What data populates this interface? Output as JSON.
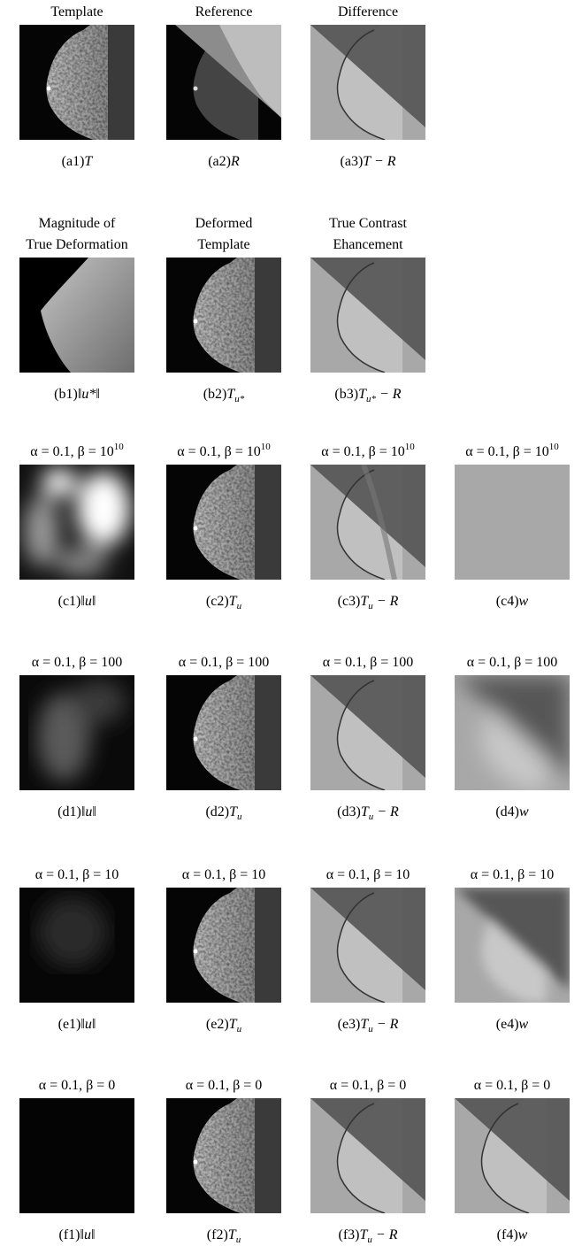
{
  "rows": [
    {
      "panels": [
        {
          "title": [
            {
              "text": "Template"
            }
          ],
          "caption": {
            "tag": "(a1)",
            "main": "T"
          }
        },
        {
          "title": [
            {
              "text": "Reference"
            }
          ],
          "caption": {
            "tag": "(a2)",
            "main": "R"
          }
        },
        {
          "title": [
            {
              "text": "Difference"
            }
          ],
          "caption": {
            "tag": "(a3)",
            "main": "T − R"
          }
        }
      ]
    },
    {
      "panels": [
        {
          "title": [
            {
              "text": "Magnitude of"
            },
            {
              "text": "True Deformation"
            }
          ],
          "caption": {
            "tag": "(b1)",
            "main": "‖u*‖"
          }
        },
        {
          "title": [
            {
              "text": "Deformed"
            },
            {
              "text": "Template"
            }
          ],
          "caption": {
            "tag": "(b2)",
            "main": "T",
            "sub": "u*"
          }
        },
        {
          "title": [
            {
              "text": "True Contrast"
            },
            {
              "text": "Ehancement"
            }
          ],
          "caption": {
            "tag": "(b3)",
            "main": "T",
            "sub": "u*",
            "rest": " − R"
          }
        }
      ]
    },
    {
      "panels": [
        {
          "title": [
            {
              "text": "α = 0.1, β = 10",
              "sup": "10"
            }
          ],
          "caption": {
            "tag": "(c1)",
            "main": "‖u‖"
          }
        },
        {
          "title": [
            {
              "text": "α = 0.1, β = 10",
              "sup": "10"
            }
          ],
          "caption": {
            "tag": "(c2)",
            "main": "T",
            "sub": "u"
          }
        },
        {
          "title": [
            {
              "text": "α = 0.1, β = 10",
              "sup": "10"
            }
          ],
          "caption": {
            "tag": "(c3)",
            "main": "T",
            "sub": "u",
            "rest": " − R"
          }
        },
        {
          "title": [
            {
              "text": "α = 0.1, β = 10",
              "sup": "10"
            }
          ],
          "caption": {
            "tag": "(c4)",
            "main": "w"
          }
        }
      ]
    },
    {
      "panels": [
        {
          "title": [
            {
              "text": "α = 0.1, β = 100"
            }
          ],
          "caption": {
            "tag": "(d1)",
            "main": "‖u‖"
          }
        },
        {
          "title": [
            {
              "text": "α = 0.1, β = 100"
            }
          ],
          "caption": {
            "tag": "(d2)",
            "main": "T",
            "sub": "u"
          }
        },
        {
          "title": [
            {
              "text": "α = 0.1, β = 100"
            }
          ],
          "caption": {
            "tag": "(d3)",
            "main": "T",
            "sub": "u",
            "rest": " − R"
          }
        },
        {
          "title": [
            {
              "text": "α = 0.1, β = 100"
            }
          ],
          "caption": {
            "tag": "(d4)",
            "main": "w"
          }
        }
      ]
    },
    {
      "panels": [
        {
          "title": [
            {
              "text": "α = 0.1, β = 10"
            }
          ],
          "caption": {
            "tag": "(e1)",
            "main": "‖u‖"
          }
        },
        {
          "title": [
            {
              "text": "α = 0.1, β = 10"
            }
          ],
          "caption": {
            "tag": "(e2)",
            "main": "T",
            "sub": "u"
          }
        },
        {
          "title": [
            {
              "text": "α = 0.1, β = 10"
            }
          ],
          "caption": {
            "tag": "(e3)",
            "main": "T",
            "sub": "u",
            "rest": " − R"
          }
        },
        {
          "title": [
            {
              "text": "α = 0.1, β = 10"
            }
          ],
          "caption": {
            "tag": "(e4)",
            "main": "w"
          }
        }
      ]
    },
    {
      "panels": [
        {
          "title": [
            {
              "text": "α = 0.1, β = 0"
            }
          ],
          "caption": {
            "tag": "(f1)",
            "main": "‖u‖"
          }
        },
        {
          "title": [
            {
              "text": "α = 0.1, β = 0"
            }
          ],
          "caption": {
            "tag": "(f2)",
            "main": "T",
            "sub": "u"
          }
        },
        {
          "title": [
            {
              "text": "α = 0.1, β = 0"
            }
          ],
          "caption": {
            "tag": "(f3)",
            "main": "T",
            "sub": "u",
            "rest": " − R"
          }
        },
        {
          "title": [
            {
              "text": "α = 0.1, β = 0"
            }
          ],
          "caption": {
            "tag": "(f4)",
            "main": "w"
          }
        }
      ]
    }
  ]
}
